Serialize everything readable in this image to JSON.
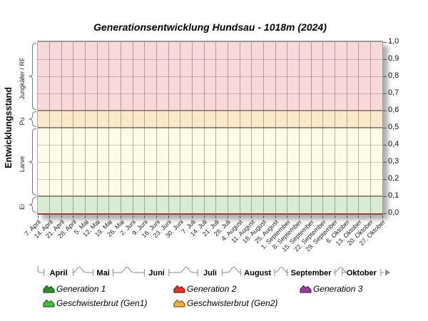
{
  "title": "Generationsentwicklung Hundsau - 1018m (2024)",
  "y_axis": {
    "label": "Entwicklungsstand",
    "tick_labels": [
      "1,0",
      "0,9",
      "0,8",
      "0,7",
      "0,6",
      "0,5",
      "0,4",
      "0,3",
      "0,2",
      "0,1",
      "0,0"
    ]
  },
  "stages": [
    {
      "label": "Jungkäfer / RF",
      "from": 0.6,
      "to": 1.0,
      "color": "#f9d8da"
    },
    {
      "label": "Pu",
      "from": 0.5,
      "to": 0.6,
      "color": "#fbe8cb"
    },
    {
      "label": "Larve",
      "from": 0.1,
      "to": 0.5,
      "color": "#fcfce9"
    },
    {
      "label": "Ei",
      "from": 0.0,
      "to": 0.1,
      "color": "#d8ecd3"
    }
  ],
  "x_axis": {
    "week_labels": [
      "7. April",
      "14. April",
      "21. April",
      "28. April",
      "5. Mai",
      "12. Mai",
      "19. Mai",
      "26. Mai",
      "2. Juni",
      "9. Juni",
      "16. Juni",
      "23. Juni",
      "30. Juni",
      "7. Juli",
      "14. Juli",
      "21. Juli",
      "28. Juli",
      "4. August",
      "11. August",
      "18. August",
      "25. August",
      "1. September",
      "8. September",
      "15. September",
      "22. September",
      "29. September",
      "6. Oktober",
      "13. Oktober",
      "20. Oktober",
      "27. Oktober"
    ],
    "months": [
      {
        "label": "April",
        "weeks": 4
      },
      {
        "label": "Mai",
        "weeks": 4
      },
      {
        "label": "Juni",
        "weeks": 5
      },
      {
        "label": "Juli",
        "weeks": 4
      },
      {
        "label": "August",
        "weeks": 4
      },
      {
        "label": "September",
        "weeks": 5
      },
      {
        "label": "Oktober",
        "weeks": 4
      }
    ]
  },
  "legend": [
    {
      "label": "Generation 1",
      "color": "#2e8b2e",
      "border": "#14541a"
    },
    {
      "label": "Generation 2",
      "color": "#ee3124",
      "border": "#82150c"
    },
    {
      "label": "Generation 3",
      "color": "#9440a0",
      "border": "#4b1d56"
    },
    {
      "label": "Geschwisterbrut (Gen1)",
      "color": "#41bf41",
      "border": "#1b6b22"
    },
    {
      "label": "Geschwisterbrut (Gen2)",
      "color": "#f8b133",
      "border": "#8a5a10"
    }
  ],
  "chart_data": {
    "type": "area",
    "title": "Generationsentwicklung Hundsau - 1018m (2024)",
    "x": [
      "7. April",
      "14. April",
      "21. April",
      "28. April",
      "5. Mai",
      "12. Mai",
      "19. Mai",
      "26. Mai",
      "2. Juni",
      "9. Juni",
      "16. Juni",
      "23. Juni",
      "30. Juni",
      "7. Juli",
      "14. Juli",
      "21. Juli",
      "28. Juli",
      "4. August",
      "11. August",
      "18. August",
      "25. August",
      "1. September",
      "8. September",
      "15. September",
      "22. September",
      "29. September",
      "6. Oktober",
      "13. Oktober",
      "20. Oktober",
      "27. Oktober"
    ],
    "ylabel": "Entwicklungsstand",
    "ylim": [
      0,
      1
    ],
    "ytick_step": 0.1,
    "ytick_format": "decimal-comma",
    "grid": true,
    "legend_position": "bottom",
    "series": [
      {
        "name": "Generation 1",
        "values": []
      },
      {
        "name": "Generation 2",
        "values": []
      },
      {
        "name": "Generation 3",
        "values": []
      },
      {
        "name": "Geschwisterbrut (Gen1)",
        "values": []
      },
      {
        "name": "Geschwisterbrut (Gen2)",
        "values": []
      }
    ],
    "background_bands": [
      {
        "label": "Ei",
        "from": 0.0,
        "to": 0.1,
        "color": "#d8ecd3"
      },
      {
        "label": "Larve",
        "from": 0.1,
        "to": 0.5,
        "color": "#fcfce9"
      },
      {
        "label": "Pu",
        "from": 0.5,
        "to": 0.6,
        "color": "#fbe8cb"
      },
      {
        "label": "Jungkäfer / RF",
        "from": 0.6,
        "to": 1.0,
        "color": "#f9d8da"
      }
    ]
  }
}
